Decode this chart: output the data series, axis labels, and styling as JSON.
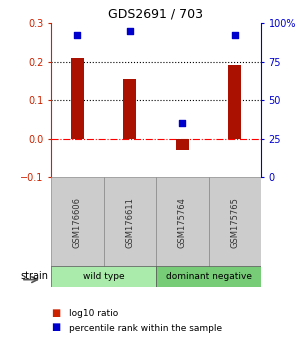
{
  "title": "GDS2691 / 703",
  "samples": [
    "GSM176606",
    "GSM176611",
    "GSM175764",
    "GSM175765"
  ],
  "log10_ratio": [
    0.21,
    0.155,
    -0.03,
    0.19
  ],
  "percentile_rank": [
    92,
    95,
    35,
    92
  ],
  "bar_color": "#aa1100",
  "dot_color": "#0000cc",
  "ylim_left": [
    -0.1,
    0.3
  ],
  "ylim_right": [
    0,
    100
  ],
  "yticks_left": [
    -0.1,
    0.0,
    0.1,
    0.2,
    0.3
  ],
  "yticks_right": [
    0,
    25,
    50,
    75,
    100
  ],
  "ytick_labels_right": [
    "0",
    "25",
    "50",
    "75",
    "100%"
  ],
  "groups": [
    {
      "label": "wild type",
      "samples": [
        0,
        1
      ],
      "color": "#aaeaaa"
    },
    {
      "label": "dominant negative",
      "samples": [
        2,
        3
      ],
      "color": "#77cc77"
    }
  ],
  "strain_label": "strain",
  "legend_items": [
    {
      "color": "#cc2200",
      "label": "log10 ratio"
    },
    {
      "color": "#0000cc",
      "label": "percentile rank within the sample"
    }
  ],
  "bar_width": 0.25,
  "sample_label_color": "#333333",
  "bg_color": "#ffffff",
  "axis_label_color_left": "#cc2200",
  "axis_label_color_right": "#0000cc",
  "gray_box_color": "#cccccc",
  "gray_box_edge": "#888888"
}
